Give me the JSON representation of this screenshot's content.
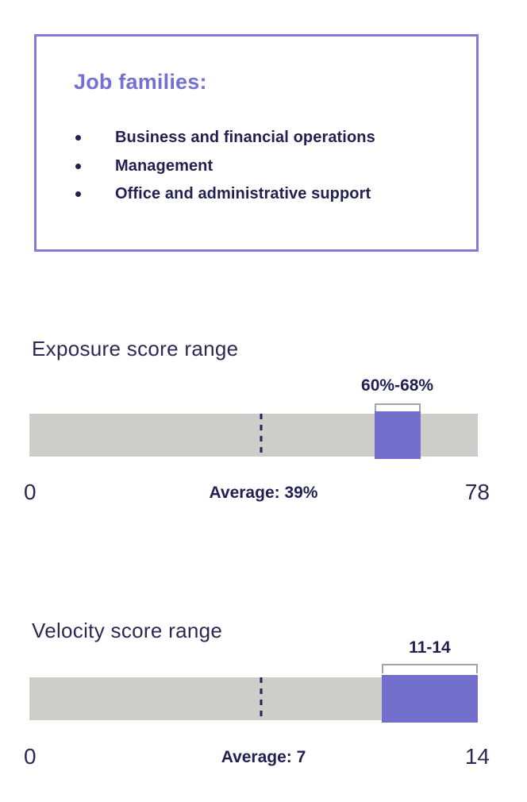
{
  "info_box": {
    "heading": "Job families:",
    "items": [
      "Business and financial operations",
      "Management",
      "Office and administrative support"
    ]
  },
  "colors": {
    "accent_purple": "#7571d2",
    "box_border_purple": "#807cd8",
    "navy_text": "#221f52",
    "track_gray": "#cdcdca",
    "segment_purple": "#7370cd",
    "bracket_gray": "#a3a3a3"
  },
  "chart_data": [
    {
      "type": "range-bar",
      "title": "Exposure score range",
      "range_label": "60%-68%",
      "range": [
        60,
        68
      ],
      "axis_min": 0,
      "axis_max": 78,
      "min_label": "0",
      "max_label": "78",
      "average": 39,
      "average_label": "Average: 39%",
      "average_line_pct": 51.7,
      "legend_position": "none",
      "grid": false
    },
    {
      "type": "range-bar",
      "title": "Velocity score range",
      "range_label": "11-14",
      "range": [
        11,
        14
      ],
      "axis_min": 0,
      "axis_max": 14,
      "min_label": "0",
      "max_label": "14",
      "average": 7,
      "average_label": "Average: 7",
      "average_line_pct": 51.7,
      "legend_position": "none",
      "grid": false
    }
  ]
}
